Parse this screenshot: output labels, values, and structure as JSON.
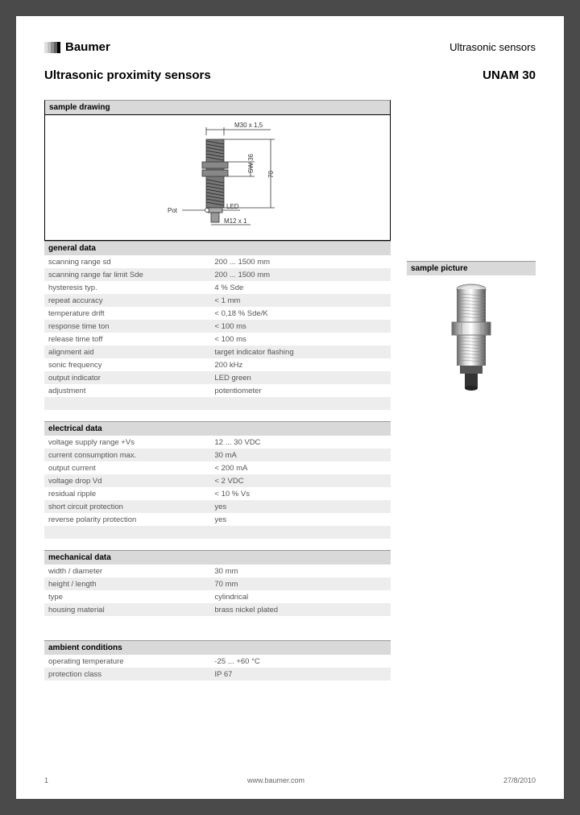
{
  "brand": "Baumer",
  "header_right": "Ultrasonic sensors",
  "title_left": "Ultrasonic proximity sensors",
  "title_right": "UNAM 30",
  "sample_drawing_label": "sample drawing",
  "sample_picture_label": "sample picture",
  "drawing": {
    "thread_label": "M30 x 1,5",
    "sw_label": "SW 36",
    "len_label": "70",
    "pot_label": "Pot",
    "led_label": "LED",
    "conn_label": "M12 x 1"
  },
  "sections": [
    {
      "title": "general data",
      "rows": [
        [
          "scanning range sd",
          "200 ... 1500 mm"
        ],
        [
          "scanning range far limit Sde",
          "200 ... 1500 mm"
        ],
        [
          "hysteresis typ.",
          "4 % Sde"
        ],
        [
          "repeat accuracy",
          "< 1 mm"
        ],
        [
          "temperature drift",
          "< 0,18 % Sde/K"
        ],
        [
          "response time ton",
          "< 100 ms"
        ],
        [
          "release time toff",
          "< 100 ms"
        ],
        [
          "alignment aid",
          "target indicator flashing"
        ],
        [
          "sonic frequency",
          "200 kHz"
        ],
        [
          "output indicator",
          "LED green"
        ],
        [
          "adjustment",
          "potentiometer"
        ]
      ]
    },
    {
      "title": "electrical data",
      "rows": [
        [
          "voltage supply range +Vs",
          "12 ... 30 VDC"
        ],
        [
          "current consumption max.",
          "30 mA"
        ],
        [
          "output current",
          "< 200 mA"
        ],
        [
          "voltage drop Vd",
          "< 2 VDC"
        ],
        [
          "residual ripple",
          "< 10 % Vs"
        ],
        [
          "short circuit protection",
          "yes"
        ],
        [
          "reverse polarity protection",
          "yes"
        ]
      ]
    },
    {
      "title": "mechanical data",
      "rows": [
        [
          "width / diameter",
          "30 mm"
        ],
        [
          "height / length",
          "70 mm"
        ],
        [
          "type",
          "cylindrical"
        ],
        [
          "housing material",
          "brass nickel plated"
        ]
      ]
    },
    {
      "title": "ambient conditions",
      "rows": [
        [
          "operating temperature",
          "-25 ... +60 °C"
        ],
        [
          "protection class",
          "IP 67"
        ]
      ]
    }
  ],
  "footer": {
    "page": "1",
    "url": "www.baumer.com",
    "date": "27/8/2010"
  }
}
